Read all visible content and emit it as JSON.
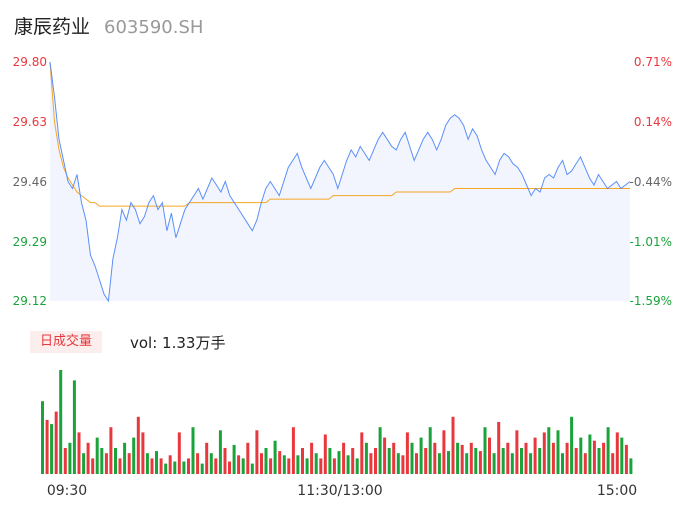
{
  "header": {
    "name": "康辰药业",
    "code": "603590.SH"
  },
  "volume": {
    "tag": "日成交量",
    "label": "vol: 1.33万手"
  },
  "colors": {
    "up": "#e8383d",
    "down": "#1aa33a",
    "price_line": "#5b8ff9",
    "avg_line": "#f5a623",
    "area": "#f2f5fd"
  },
  "chart_data": [
    {
      "type": "line",
      "title": "",
      "y_ticks": [
        "29.80",
        "29.63",
        "29.46",
        "29.29",
        "29.12"
      ],
      "y_ticks_pct": [
        "0.71%",
        "0.14%",
        "-0.44%",
        "-1.01%",
        "-1.59%"
      ],
      "ylim": [
        29.12,
        29.8
      ],
      "x_ticks": [
        "09:30",
        "11:30/13:00",
        "15:00"
      ],
      "series": [
        {
          "values": [
            29.8,
            29.7,
            29.58,
            29.52,
            29.46,
            29.44,
            29.48,
            29.4,
            29.35,
            29.25,
            29.22,
            29.18,
            29.14,
            29.12,
            29.24,
            29.3,
            29.38,
            29.35,
            29.4,
            29.38,
            29.34,
            29.36,
            29.4,
            29.42,
            29.38,
            29.4,
            29.32,
            29.37,
            29.3,
            29.34,
            29.38,
            29.4,
            29.42,
            29.44,
            29.41,
            29.44,
            29.47,
            29.45,
            29.43,
            29.46,
            29.42,
            29.4,
            29.38,
            29.36,
            29.34,
            29.32,
            29.35,
            29.4,
            29.44,
            29.46,
            29.44,
            29.42,
            29.46,
            29.5,
            29.52,
            29.54,
            29.5,
            29.47,
            29.44,
            29.47,
            29.5,
            29.52,
            29.5,
            29.48,
            29.44,
            29.48,
            29.52,
            29.55,
            29.53,
            29.56,
            29.54,
            29.52,
            29.55,
            29.58,
            29.6,
            29.58,
            29.56,
            29.55,
            29.58,
            29.6,
            29.56,
            29.52,
            29.55,
            29.58,
            29.6,
            29.58,
            29.55,
            29.58,
            29.62,
            29.64,
            29.65,
            29.64,
            29.62,
            29.58,
            29.61,
            29.59,
            29.55,
            29.52,
            29.5,
            29.48,
            29.52,
            29.54,
            29.53,
            29.51,
            29.5,
            29.48,
            29.45,
            29.42,
            29.44,
            29.43,
            29.47,
            29.48,
            29.47,
            29.5,
            29.52,
            29.48,
            29.49,
            29.51,
            29.53,
            29.5,
            29.47,
            29.45,
            29.48,
            29.46,
            29.44,
            29.45,
            29.46,
            29.44,
            29.45,
            29.46
          ],
          "color_key": "price_line"
        },
        {
          "values": [
            29.8,
            29.63,
            29.55,
            29.5,
            29.47,
            29.45,
            29.43,
            29.42,
            29.41,
            29.4,
            29.4,
            29.39,
            29.39,
            29.39,
            29.39,
            29.39,
            29.39,
            29.39,
            29.39,
            29.39,
            29.39,
            29.39,
            29.39,
            29.39,
            29.39,
            29.39,
            29.39,
            29.39,
            29.39,
            29.39,
            29.39,
            29.4,
            29.4,
            29.4,
            29.4,
            29.4,
            29.4,
            29.4,
            29.4,
            29.4,
            29.4,
            29.4,
            29.4,
            29.4,
            29.4,
            29.4,
            29.4,
            29.4,
            29.4,
            29.41,
            29.41,
            29.41,
            29.41,
            29.41,
            29.41,
            29.41,
            29.41,
            29.41,
            29.41,
            29.41,
            29.41,
            29.41,
            29.41,
            29.42,
            29.42,
            29.42,
            29.42,
            29.42,
            29.42,
            29.42,
            29.42,
            29.42,
            29.42,
            29.42,
            29.42,
            29.42,
            29.42,
            29.43,
            29.43,
            29.43,
            29.43,
            29.43,
            29.43,
            29.43,
            29.43,
            29.43,
            29.43,
            29.43,
            29.43,
            29.43,
            29.44,
            29.44,
            29.44,
            29.44,
            29.44,
            29.44,
            29.44,
            29.44,
            29.44,
            29.44,
            29.44,
            29.44,
            29.44,
            29.44,
            29.44,
            29.44,
            29.44,
            29.44,
            29.44,
            29.44,
            29.44,
            29.44,
            29.44,
            29.44,
            29.44,
            29.44,
            29.44,
            29.44,
            29.44,
            29.44,
            29.44,
            29.44,
            29.44,
            29.44,
            29.44,
            29.44,
            29.44,
            29.44,
            29.44,
            29.44
          ],
          "color_key": "avg_line"
        }
      ]
    },
    {
      "type": "bar",
      "title": "",
      "values": [
        0.7,
        0.52,
        0.48,
        0.6,
        1.0,
        0.25,
        0.3,
        0.9,
        0.4,
        0.2,
        0.3,
        0.15,
        0.35,
        0.25,
        0.2,
        0.45,
        0.25,
        0.15,
        0.3,
        0.2,
        0.35,
        0.55,
        0.4,
        0.2,
        0.15,
        0.22,
        0.15,
        0.1,
        0.18,
        0.12,
        0.4,
        0.12,
        0.15,
        0.45,
        0.2,
        0.1,
        0.3,
        0.2,
        0.15,
        0.42,
        0.25,
        0.12,
        0.28,
        0.18,
        0.15,
        0.3,
        0.1,
        0.42,
        0.2,
        0.25,
        0.15,
        0.32,
        0.22,
        0.18,
        0.15,
        0.45,
        0.18,
        0.25,
        0.15,
        0.3,
        0.2,
        0.15,
        0.38,
        0.25,
        0.15,
        0.22,
        0.3,
        0.18,
        0.25,
        0.15,
        0.4,
        0.3,
        0.2,
        0.25,
        0.45,
        0.35,
        0.25,
        0.3,
        0.2,
        0.18,
        0.4,
        0.3,
        0.2,
        0.35,
        0.25,
        0.45,
        0.3,
        0.2,
        0.42,
        0.22,
        0.55,
        0.3,
        0.28,
        0.2,
        0.3,
        0.25,
        0.22,
        0.45,
        0.35,
        0.2,
        0.5,
        0.25,
        0.3,
        0.2,
        0.42,
        0.25,
        0.3,
        0.2,
        0.35,
        0.25,
        0.4,
        0.45,
        0.3,
        0.42,
        0.2,
        0.3,
        0.55,
        0.25,
        0.35,
        0.2,
        0.38,
        0.32,
        0.25,
        0.3,
        0.45,
        0.2,
        0.4,
        0.35,
        0.28,
        0.15
      ],
      "up_down": [
        "d",
        "u",
        "d",
        "u",
        "d",
        "u",
        "d",
        "d",
        "u",
        "d",
        "u",
        "u",
        "d",
        "d",
        "u",
        "u",
        "d",
        "u",
        "d",
        "u",
        "d",
        "u",
        "u",
        "d",
        "u",
        "d",
        "u",
        "d",
        "u",
        "d",
        "u",
        "d",
        "u",
        "d",
        "u",
        "d",
        "u",
        "d",
        "u",
        "d",
        "u",
        "u",
        "d",
        "u",
        "d",
        "u",
        "d",
        "u",
        "u",
        "d",
        "u",
        "d",
        "u",
        "d",
        "u",
        "u",
        "d",
        "u",
        "d",
        "u",
        "d",
        "u",
        "u",
        "d",
        "u",
        "d",
        "u",
        "d",
        "u",
        "d",
        "u",
        "d",
        "u",
        "u",
        "d",
        "u",
        "d",
        "u",
        "d",
        "u",
        "u",
        "d",
        "u",
        "d",
        "u",
        "d",
        "u",
        "d",
        "u",
        "d",
        "u",
        "d",
        "u",
        "d",
        "u",
        "d",
        "u",
        "d",
        "u",
        "d",
        "u",
        "d",
        "u",
        "d",
        "u",
        "d",
        "u",
        "d",
        "u",
        "d",
        "u",
        "d",
        "u",
        "d",
        "d",
        "u",
        "d",
        "u",
        "d",
        "u",
        "d",
        "u",
        "d",
        "u",
        "d",
        "u",
        "u",
        "d",
        "u",
        "d",
        "u",
        "u"
      ]
    }
  ]
}
